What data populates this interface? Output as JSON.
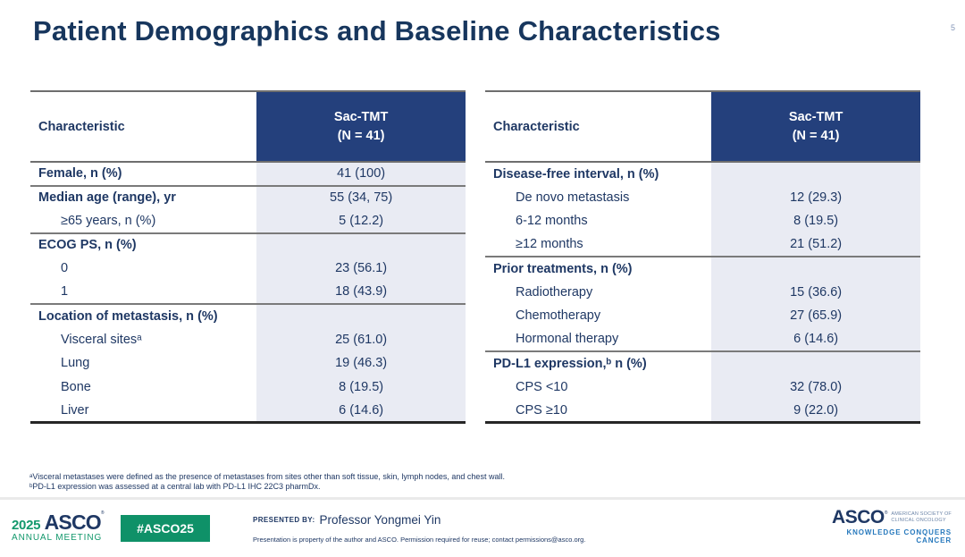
{
  "page": {
    "title": "Patient Demographics and Baseline Characteristics",
    "page_number": "5"
  },
  "colors": {
    "title_navy": "#17365D",
    "table_header_bg": "#24407C",
    "table_text_navy": "#1F3864",
    "value_cell_bg": "#E9EBF3",
    "footer_green": "#0F9168",
    "tagline_blue": "#2779BD"
  },
  "tables": [
    {
      "header": {
        "characteristic": "Characteristic",
        "group": "Sac-TMT",
        "n": "(N = 41)"
      },
      "rows": [
        {
          "label": "Female, n (%)",
          "value": "41 (100)",
          "bold": true,
          "indent": false,
          "divider_below": true
        },
        {
          "label": "Median age (range), yr",
          "value": "55 (34, 75)",
          "bold": true,
          "indent": false,
          "divider_below": false
        },
        {
          "label": "≥65 years, n (%)",
          "value": "5 (12.2)",
          "bold": false,
          "indent": true,
          "divider_below": true
        },
        {
          "label": "ECOG PS, n (%)",
          "value": "",
          "bold": true,
          "indent": false,
          "divider_below": false
        },
        {
          "label": "0",
          "value": "23 (56.1)",
          "bold": false,
          "indent": true,
          "divider_below": false
        },
        {
          "label": "1",
          "value": "18 (43.9)",
          "bold": false,
          "indent": true,
          "divider_below": true
        },
        {
          "label": "Location of metastasis, n (%)",
          "value": "",
          "bold": true,
          "indent": false,
          "divider_below": false
        },
        {
          "label": "Visceral sitesᵃ",
          "value": "25 (61.0)",
          "bold": false,
          "indent": true,
          "divider_below": false
        },
        {
          "label": "Lung",
          "value": "19 (46.3)",
          "bold": false,
          "indent": true,
          "divider_below": false
        },
        {
          "label": "Bone",
          "value": "8 (19.5)",
          "bold": false,
          "indent": true,
          "divider_below": false
        },
        {
          "label": "Liver",
          "value": "6 (14.6)",
          "bold": false,
          "indent": true,
          "divider_below": false
        }
      ]
    },
    {
      "header": {
        "characteristic": "Characteristic",
        "group": "Sac-TMT",
        "n": "(N = 41)"
      },
      "rows": [
        {
          "label": "Disease-free interval, n (%)",
          "value": "",
          "bold": true,
          "indent": false,
          "divider_below": false
        },
        {
          "label": "De novo metastasis",
          "value": "12 (29.3)",
          "bold": false,
          "indent": true,
          "divider_below": false
        },
        {
          "label": "6-12 months",
          "value": "8 (19.5)",
          "bold": false,
          "indent": true,
          "divider_below": false
        },
        {
          "label": "≥12 months",
          "value": "21 (51.2)",
          "bold": false,
          "indent": true,
          "divider_below": true
        },
        {
          "label": "Prior treatments, n (%)",
          "value": "",
          "bold": true,
          "indent": false,
          "divider_below": false
        },
        {
          "label": "Radiotherapy",
          "value": "15 (36.6)",
          "bold": false,
          "indent": true,
          "divider_below": false
        },
        {
          "label": "Chemotherapy",
          "value": "27 (65.9)",
          "bold": false,
          "indent": true,
          "divider_below": false
        },
        {
          "label": "Hormonal therapy",
          "value": "6 (14.6)",
          "bold": false,
          "indent": true,
          "divider_below": true
        },
        {
          "label": "PD-L1 expression,ᵇ n (%)",
          "value": "",
          "bold": true,
          "indent": false,
          "divider_below": false
        },
        {
          "label": "CPS <10",
          "value": "32 (78.0)",
          "bold": false,
          "indent": true,
          "divider_below": false
        },
        {
          "label": "CPS ≥10",
          "value": "9 (22.0)",
          "bold": false,
          "indent": true,
          "divider_below": false
        }
      ]
    }
  ],
  "footnotes": [
    "ᵃVisceral metastases were defined as the presence of metastases from sites other than soft tissue, skin, lymph nodes, and chest wall.",
    "ᵇPD-L1 expression was assessed at a central lab with PD-L1 IHC 22C3 pharmDx."
  ],
  "footer": {
    "meeting_logo": {
      "year": "2025",
      "org": "ASCO",
      "reg": "®",
      "line2": "ANNUAL MEETING"
    },
    "hashtag": "#ASCO25",
    "presented_by_label": "PRESENTED BY:",
    "presenter": "Professor Yongmei Yin",
    "disclaimer": "Presentation is property of the author and ASCO. Permission required for reuse; contact permissions@asco.org.",
    "asco_logo": {
      "org": "ASCO",
      "reg": "®",
      "society_line1": "AMERICAN SOCIETY OF",
      "society_line2": "CLINICAL ONCOLOGY",
      "tagline": "KNOWLEDGE CONQUERS CANCER"
    }
  }
}
